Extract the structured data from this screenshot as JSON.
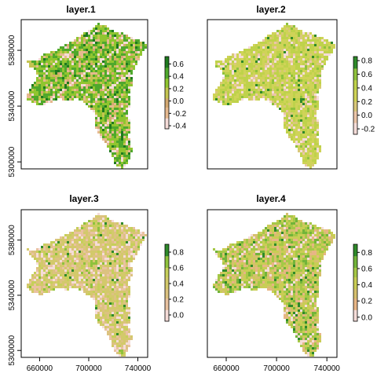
{
  "chart_data": [
    {
      "type": "heatmap",
      "title": "layer.1",
      "legend": {
        "ticks": [
          "0.6",
          "0.4",
          "0.2",
          "0.0",
          "-0.2",
          "-0.4"
        ],
        "values": [
          0.6,
          0.4,
          0.2,
          0.0,
          -0.2,
          -0.4
        ],
        "range": [
          -0.45,
          0.72
        ]
      },
      "y_ticks": [
        "5300000",
        "5340000",
        "5380000"
      ],
      "x_ticks": [],
      "xlim": [
        645000,
        748000
      ],
      "ylim": [
        5295000,
        5402000
      ],
      "palette": [
        "#f5dcd8",
        "#e6b98f",
        "#d3a870",
        "#c4c451",
        "#90c530",
        "#4fa82c",
        "#1f7a1f"
      ]
    },
    {
      "type": "heatmap",
      "title": "layer.2",
      "legend": {
        "ticks": [
          "0.8",
          "0.6",
          "0.4",
          "0.2",
          "0.0",
          "-0.2"
        ],
        "values": [
          0.8,
          0.6,
          0.4,
          0.2,
          0.0,
          -0.2
        ],
        "range": [
          -0.28,
          0.86
        ]
      },
      "y_ticks": [],
      "x_ticks": [],
      "xlim": [
        645000,
        748000
      ],
      "ylim": [
        5295000,
        5402000
      ],
      "palette": [
        "#f5dcd8",
        "#ebc5a8",
        "#d9c87a",
        "#cfd358",
        "#bfd24b",
        "#8fc23d",
        "#2f8a2a"
      ]
    },
    {
      "type": "heatmap",
      "title": "layer.3",
      "legend": {
        "ticks": [
          "0.8",
          "0.6",
          "0.4",
          "0.2",
          "0.0"
        ],
        "values": [
          0.8,
          0.6,
          0.4,
          0.2,
          0.0
        ],
        "range": [
          -0.08,
          0.9
        ]
      },
      "y_ticks": [
        "5300000",
        "5340000",
        "5380000"
      ],
      "x_ticks": [
        "660000",
        "700000",
        "740000"
      ],
      "xlim": [
        645000,
        748000
      ],
      "ylim": [
        5295000,
        5402000
      ],
      "palette": [
        "#f5dcd8",
        "#e9c2a0",
        "#dcc280",
        "#d3c96b",
        "#c6cf5a",
        "#8fc23d",
        "#2f8a2a"
      ]
    },
    {
      "type": "heatmap",
      "title": "layer.4",
      "legend": {
        "ticks": [
          "0.8",
          "0.6",
          "0.4",
          "0.2",
          "0.0"
        ],
        "values": [
          0.8,
          0.6,
          0.4,
          0.2,
          0.0
        ],
        "range": [
          -0.05,
          0.9
        ]
      },
      "y_ticks": [],
      "x_ticks": [
        "660000",
        "700000",
        "740000"
      ],
      "xlim": [
        645000,
        748000
      ],
      "ylim": [
        5295000,
        5402000
      ],
      "palette": [
        "#f5dcd8",
        "#e7b585",
        "#d6c06e",
        "#c9cd55",
        "#a6c847",
        "#72b43a",
        "#2f8a2a"
      ]
    }
  ]
}
